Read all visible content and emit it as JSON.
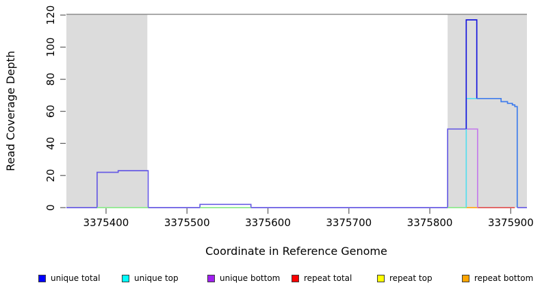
{
  "chart_data": {
    "type": "line",
    "step": true,
    "title": "",
    "xlabel": "Coordinate in Reference Genome",
    "ylabel": "Read Coverage Depth",
    "xlim": [
      3375351,
      3375920
    ],
    "ylim": [
      0,
      120
    ],
    "xticks": [
      3375400,
      3375500,
      3375600,
      3375700,
      3375800,
      3375900
    ],
    "yticks": [
      0,
      20,
      40,
      60,
      80,
      100,
      120
    ],
    "grid": false,
    "legend_position": "bottom",
    "repeat_regions": [
      [
        3375351,
        3375451
      ],
      [
        3375822,
        3375920
      ]
    ],
    "region_top_value": 120.5,
    "colors": {
      "repeat_region_fill": "#dcdcdc",
      "region_border": "#8c8c8c",
      "tick": "#666666",
      "text": "#000000"
    },
    "series": [
      {
        "name": "unique-total-and-bottom-overlap",
        "color": "#675be3",
        "points": [
          [
            3375351,
            0
          ],
          [
            3375389,
            0
          ],
          [
            3375389,
            22
          ],
          [
            3375415,
            22
          ],
          [
            3375415,
            23
          ],
          [
            3375452,
            23
          ],
          [
            3375452,
            0
          ],
          [
            3375516,
            0
          ],
          [
            3375516,
            2
          ],
          [
            3375579,
            2
          ],
          [
            3375579,
            0
          ],
          [
            3375822,
            0
          ],
          [
            3375822,
            49
          ],
          [
            3375845,
            49
          ]
        ]
      },
      {
        "name": "unique-top-zero-overlap-1",
        "color": "#8ce98c",
        "points": [
          [
            3375389,
            0
          ],
          [
            3375452,
            0
          ]
        ]
      },
      {
        "name": "unique-top-zero-overlap-2",
        "color": "#8ce98c",
        "points": [
          [
            3375516,
            0
          ],
          [
            3375579,
            0
          ]
        ]
      },
      {
        "name": "unique-top-zero-overlap-3",
        "color": "#8ce98c",
        "points": [
          [
            3375822,
            0
          ],
          [
            3375845,
            0
          ]
        ]
      },
      {
        "name": "repeat-bottom-baseline",
        "color": "#ffa818",
        "points": [
          [
            3375845,
            0
          ],
          [
            3375859,
            0
          ]
        ]
      },
      {
        "name": "repeat-total-baseline",
        "color": "#e05555",
        "points": [
          [
            3375859,
            0
          ],
          [
            3375905,
            0
          ]
        ]
      },
      {
        "name": "unique-bottom-plateau",
        "color": "#c47ceb",
        "points": [
          [
            3375845,
            49
          ],
          [
            3375859,
            49
          ],
          [
            3375859,
            0
          ]
        ]
      },
      {
        "name": "unique-top-rise",
        "color": "#55dfee",
        "points": [
          [
            3375845,
            0
          ],
          [
            3375845,
            68
          ],
          [
            3375859,
            68
          ]
        ]
      },
      {
        "name": "unique-total-spike",
        "color": "#1717dd",
        "points": [
          [
            3375845,
            49
          ],
          [
            3375845,
            117
          ],
          [
            3375858,
            117
          ],
          [
            3375858,
            68
          ]
        ]
      },
      {
        "name": "unique-total-and-top-overlap",
        "color": "#3f7cec",
        "points": [
          [
            3375858,
            68
          ],
          [
            3375888,
            68
          ],
          [
            3375888,
            66
          ],
          [
            3375896,
            66
          ],
          [
            3375896,
            65
          ],
          [
            3375902,
            65
          ],
          [
            3375902,
            64
          ],
          [
            3375905,
            64
          ],
          [
            3375905,
            63
          ],
          [
            3375908,
            63
          ],
          [
            3375908,
            0
          ]
        ]
      },
      {
        "name": "unique-total-right-baseline",
        "color": "#675be3",
        "points": [
          [
            3375908,
            0
          ],
          [
            3375920,
            0
          ]
        ]
      }
    ],
    "legend": {
      "items": [
        {
          "label": "unique total",
          "color": "#0000ff"
        },
        {
          "label": "unique top",
          "color": "#00ffff"
        },
        {
          "label": "unique bottom",
          "color": "#a020f0"
        },
        {
          "label": "repeat total",
          "color": "#ff0000"
        },
        {
          "label": "repeat top",
          "color": "#ffff00"
        },
        {
          "label": "repeat bottom",
          "color": "#ffa500"
        }
      ]
    }
  }
}
